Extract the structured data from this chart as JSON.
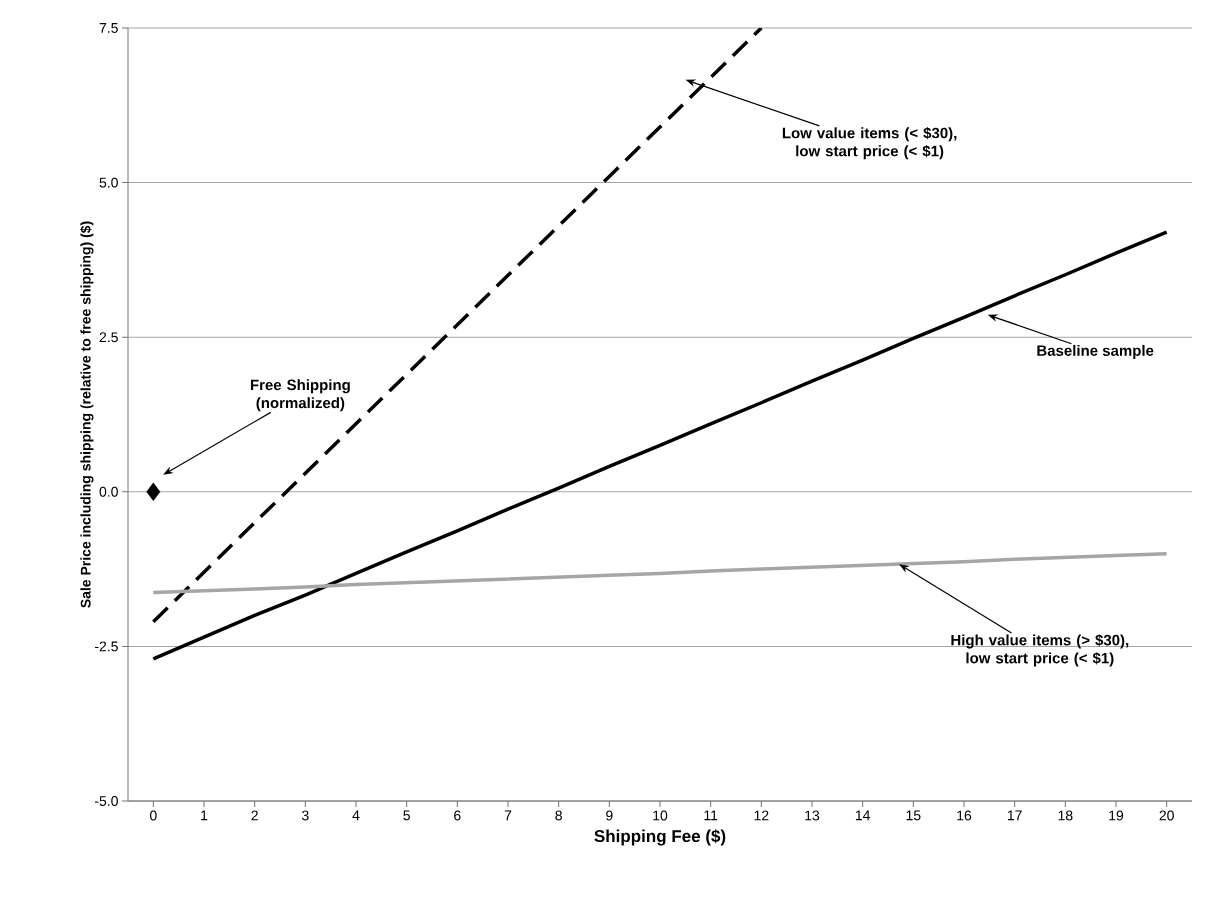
{
  "chart_data": {
    "type": "line",
    "xlabel": "Shipping Fee ($)",
    "ylabel": "Sale Price including shipping (relative to free shipping) ($)",
    "x": [
      0,
      1,
      2,
      3,
      4,
      5,
      6,
      7,
      8,
      9,
      10,
      11,
      12,
      13,
      14,
      15,
      16,
      17,
      18,
      19,
      20
    ],
    "xlim": [
      -0.5,
      20.5
    ],
    "xticks": [
      0,
      1,
      2,
      3,
      4,
      5,
      6,
      7,
      8,
      9,
      10,
      11,
      12,
      13,
      14,
      15,
      16,
      17,
      18,
      19,
      20
    ],
    "ylim": [
      -5,
      7.5
    ],
    "yticks": [
      {
        "value": -5,
        "label": "-5.0"
      },
      -2.5,
      {
        "value": 0,
        "label": "0.0"
      },
      2.5,
      {
        "value": 5,
        "label": "5.0"
      },
      7.5
    ],
    "grid": "y",
    "annotations": [
      "Free Shipping (normalized)",
      "Low value items (< $30), low start price (< $1)",
      "Baseline sample",
      {
        "text": "High value items (> $30), low start price (< $1)",
        "x": 14.72,
        "y": -1.17
      }
    ],
    "series": [
      {
        "color": "#000000",
        "line_style": "dashed",
        "values": [
          -2.1,
          -1.3,
          -0.5,
          0.3,
          1.1,
          1.9,
          2.7,
          3.5,
          4.3,
          5.1,
          5.9,
          6.7,
          7.5,
          null,
          null,
          null,
          null,
          null,
          null,
          null,
          null
        ]
      },
      {
        "color": "#000000",
        "values": [
          -2.7,
          -2.35,
          -2.0,
          -1.67,
          -1.32,
          -0.97,
          -0.63,
          -0.28,
          0.06,
          0.41,
          0.75,
          1.1,
          1.44,
          1.79,
          2.13,
          2.48,
          2.82,
          3.17,
          3.51,
          3.86,
          4.2
        ]
      },
      {
        "color": "#a6a6a6",
        "values": [
          -1.63,
          -1.6,
          -1.57,
          -1.54,
          -1.5,
          -1.47,
          -1.44,
          -1.41,
          -1.38,
          -1.35,
          -1.32,
          -1.28,
          -1.25,
          -1.22,
          -1.19,
          -1.16,
          -1.13,
          -1.09,
          -1.06,
          -1.03,
          -1.0
        ]
      },
      {
        "type": "scatter",
        "marker": "diamond",
        "color": "#000000",
        "x": [
          0
        ],
        "values": [
          0
        ]
      }
    ]
  }
}
